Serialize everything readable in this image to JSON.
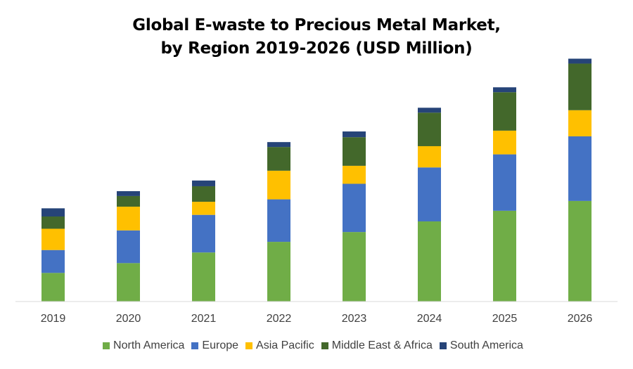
{
  "chart_data": {
    "type": "bar",
    "stacked": true,
    "title_lines": [
      "Global E-waste to Precious Metal Market,",
      "by Region 2019-2026 (USD Million)"
    ],
    "categories": [
      "2019",
      "2020",
      "2021",
      "2022",
      "2023",
      "2024",
      "2025",
      "2026"
    ],
    "series": [
      {
        "name": "North America",
        "color": "#70ad47",
        "values": [
          35,
          47,
          60,
          73,
          85,
          98,
          111,
          123
        ]
      },
      {
        "name": "Europe",
        "color": "#4472c4",
        "values": [
          28,
          40,
          46,
          52,
          59,
          66,
          69,
          79
        ]
      },
      {
        "name": "Asia Pacific",
        "color": "#ffc000",
        "values": [
          26,
          29,
          16,
          35,
          22,
          26,
          29,
          32
        ]
      },
      {
        "name": "Middle East & Africa",
        "color": "#43682b",
        "values": [
          15,
          13,
          19,
          29,
          35,
          41,
          47,
          57
        ]
      },
      {
        "name": "South America",
        "color": "#264478",
        "values": [
          10,
          6,
          7,
          6,
          7,
          6,
          6,
          6
        ]
      }
    ],
    "y_axis": {
      "visible": false,
      "min": 0,
      "max": 300
    },
    "grid": false,
    "legend_position": "bottom"
  }
}
